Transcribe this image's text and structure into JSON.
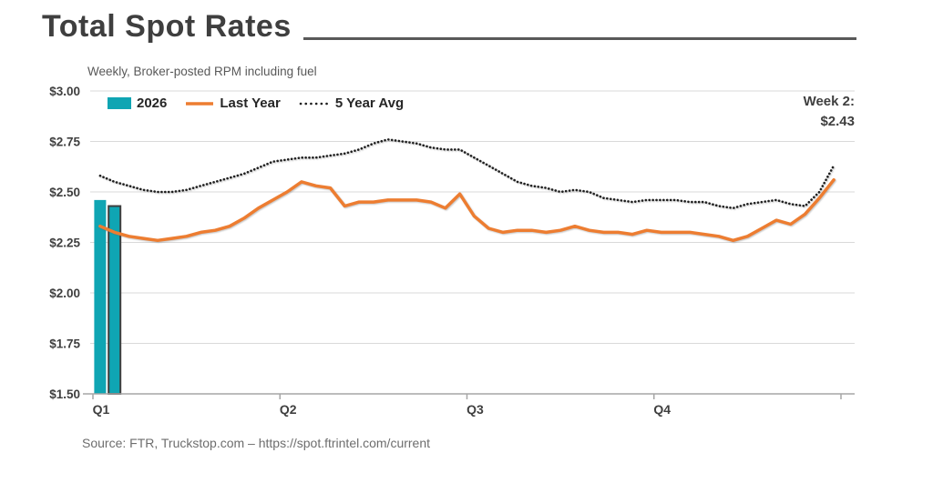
{
  "header": {
    "title": "Total Spot Rates",
    "subtitle": "Weekly, Broker-posted RPM including fuel"
  },
  "annotation": {
    "line1": "Week 2:",
    "line2": "$2.43"
  },
  "source_text": "Source: FTR, Truckstop.com – https://spot.ftrintel.com/current",
  "legend": {
    "items": [
      {
        "label": "2026",
        "swatch": "bar",
        "color": "#0FA5B3"
      },
      {
        "label": "Last Year",
        "swatch": "line",
        "color": "#ED7D31"
      },
      {
        "label": "5 Year Avg",
        "swatch": "dotted",
        "color": "#1f1f1f"
      }
    ]
  },
  "colors": {
    "teal": "#0FA5B3",
    "orange": "#ED7D31",
    "dotted": "#1f1f1f",
    "bar_outline": "#3f3f3f",
    "gridline": "#d9d9d9",
    "axis": "#a6a6a6",
    "tick_label": "#3f3f3f"
  },
  "chart_data": {
    "type": "bar+line",
    "title": "Total Spot Rates",
    "subtitle": "Weekly, Broker-posted RPM including fuel",
    "x_unit": "week of year (52 weeks)",
    "x_tick_labels": [
      "Q1",
      "Q2",
      "Q3",
      "Q4"
    ],
    "weeks_per_quarter": 13,
    "ylim": [
      1.5,
      3.0
    ],
    "y_tick_step": 0.25,
    "y_tick_labels": [
      "$1.50",
      "$1.75",
      "$2.00",
      "$2.25",
      "$2.50",
      "$2.75",
      "$3.00"
    ],
    "grid": "horizontal",
    "legend_position": "top-left inside plot",
    "annotation": "Week 2: $2.43",
    "series": [
      {
        "name": "2026",
        "type": "bar",
        "color": "#0FA5B3",
        "weeks": [
          1,
          2
        ],
        "values": [
          2.46,
          2.43
        ],
        "note": "second bar outlined (current week, $2.43)"
      },
      {
        "name": "Last Year",
        "type": "line",
        "color": "#ED7D31",
        "values": [
          2.33,
          2.3,
          2.28,
          2.27,
          2.26,
          2.27,
          2.28,
          2.3,
          2.31,
          2.33,
          2.37,
          2.42,
          2.46,
          2.5,
          2.55,
          2.53,
          2.52,
          2.43,
          2.45,
          2.45,
          2.46,
          2.46,
          2.46,
          2.45,
          2.42,
          2.49,
          2.38,
          2.32,
          2.3,
          2.31,
          2.31,
          2.3,
          2.31,
          2.33,
          2.31,
          2.3,
          2.3,
          2.29,
          2.31,
          2.3,
          2.3,
          2.3,
          2.29,
          2.28,
          2.26,
          2.28,
          2.32,
          2.36,
          2.34,
          2.39,
          2.47,
          2.56
        ]
      },
      {
        "name": "5 Year Avg",
        "type": "dotted-line",
        "color": "#1f1f1f",
        "values": [
          2.58,
          2.55,
          2.53,
          2.51,
          2.5,
          2.5,
          2.51,
          2.53,
          2.55,
          2.57,
          2.59,
          2.62,
          2.65,
          2.66,
          2.67,
          2.67,
          2.68,
          2.69,
          2.71,
          2.74,
          2.76,
          2.75,
          2.74,
          2.72,
          2.71,
          2.71,
          2.67,
          2.63,
          2.59,
          2.55,
          2.53,
          2.52,
          2.5,
          2.51,
          2.5,
          2.47,
          2.46,
          2.45,
          2.46,
          2.46,
          2.46,
          2.45,
          2.45,
          2.43,
          2.42,
          2.44,
          2.45,
          2.46,
          2.44,
          2.43,
          2.5,
          2.63
        ]
      }
    ]
  }
}
